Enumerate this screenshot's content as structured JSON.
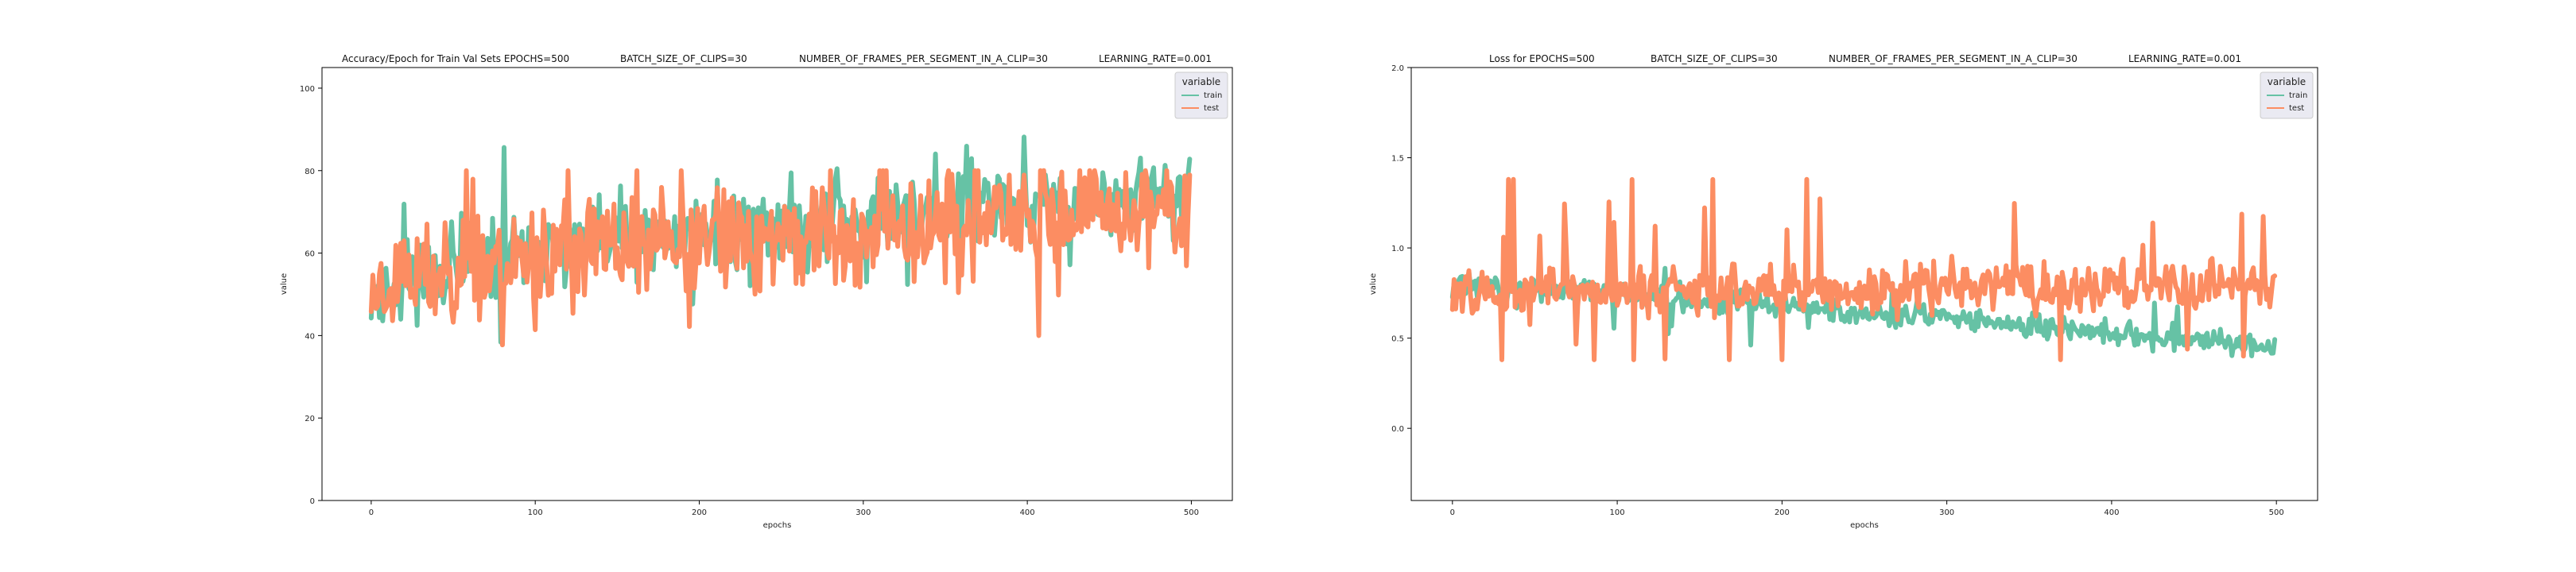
{
  "colors": {
    "train": "#66c2a5",
    "test": "#fc8d62",
    "axes": "#000000",
    "legend_bg": "#eaeaf2"
  },
  "chart_data": [
    {
      "type": "line",
      "title_segments": [
        "Accuracy/Epoch for Train Val Sets EPOCHS=500",
        "BATCH_SIZE_OF_CLIPS=30",
        "NUMBER_OF_FRAMES_PER_SEGMENT_IN_A_CLIP=30",
        "LEARNING_RATE=0.001"
      ],
      "xlabel": "epochs",
      "ylabel": "value",
      "xlim": [
        -30,
        525
      ],
      "ylim": [
        0,
        105
      ],
      "xticks": [
        0,
        100,
        200,
        300,
        400,
        500
      ],
      "yticks": [
        0,
        20,
        40,
        60,
        80,
        100
      ],
      "grid": false,
      "legend": {
        "title": "variable",
        "placement": "top-right",
        "entries": [
          "train",
          "test"
        ]
      },
      "series": [
        {
          "name": "train",
          "gen": {
            "n": 500,
            "seed": 11,
            "start": 50,
            "end": 74,
            "curve": 0.55,
            "noise": 7,
            "spikes": 0.05,
            "spike_mag": 14,
            "clip": [
              30,
              94
            ]
          }
        },
        {
          "name": "test",
          "gen": {
            "n": 500,
            "seed": 23,
            "start": 50,
            "end": 70,
            "curve": 0.5,
            "noise": 10,
            "spikes": 0.04,
            "spike_mag": 18,
            "clip": [
              30,
              80
            ]
          }
        }
      ]
    },
    {
      "type": "line",
      "title_segments": [
        "Loss for  EPOCHS=500",
        "BATCH_SIZE_OF_CLIPS=30",
        "NUMBER_OF_FRAMES_PER_SEGMENT_IN_A_CLIP=30",
        "LEARNING_RATE=0.001"
      ],
      "xlabel": "epochs",
      "ylabel": "value",
      "xlim": [
        -25,
        525
      ],
      "ylim": [
        -0.4,
        2.0
      ],
      "xticks": [
        0,
        100,
        200,
        300,
        400,
        500
      ],
      "yticks": [
        0.0,
        0.5,
        1.0,
        1.5,
        2.0
      ],
      "ytick_labels": [
        "0.0",
        "0.5",
        "1.0",
        "1.5",
        "2.0"
      ],
      "grid": false,
      "legend": {
        "title": "variable",
        "placement": "top-right",
        "entries": [
          "train",
          "test"
        ]
      },
      "series": [
        {
          "name": "train",
          "gen": {
            "n": 500,
            "seed": 31,
            "start": 0.8,
            "end": 0.45,
            "curve": 1.2,
            "noise": 0.05,
            "spikes": 0.03,
            "spike_mag": 0.15,
            "clip": [
              0.32,
              1.02
            ]
          }
        },
        {
          "name": "test",
          "gen": {
            "n": 500,
            "seed": 47,
            "start": 0.75,
            "end": 0.8,
            "curve": 1.0,
            "noise": 0.1,
            "spikes": 0.06,
            "spike_mag": 0.5,
            "clip": [
              0.38,
              1.38
            ]
          }
        }
      ]
    }
  ]
}
